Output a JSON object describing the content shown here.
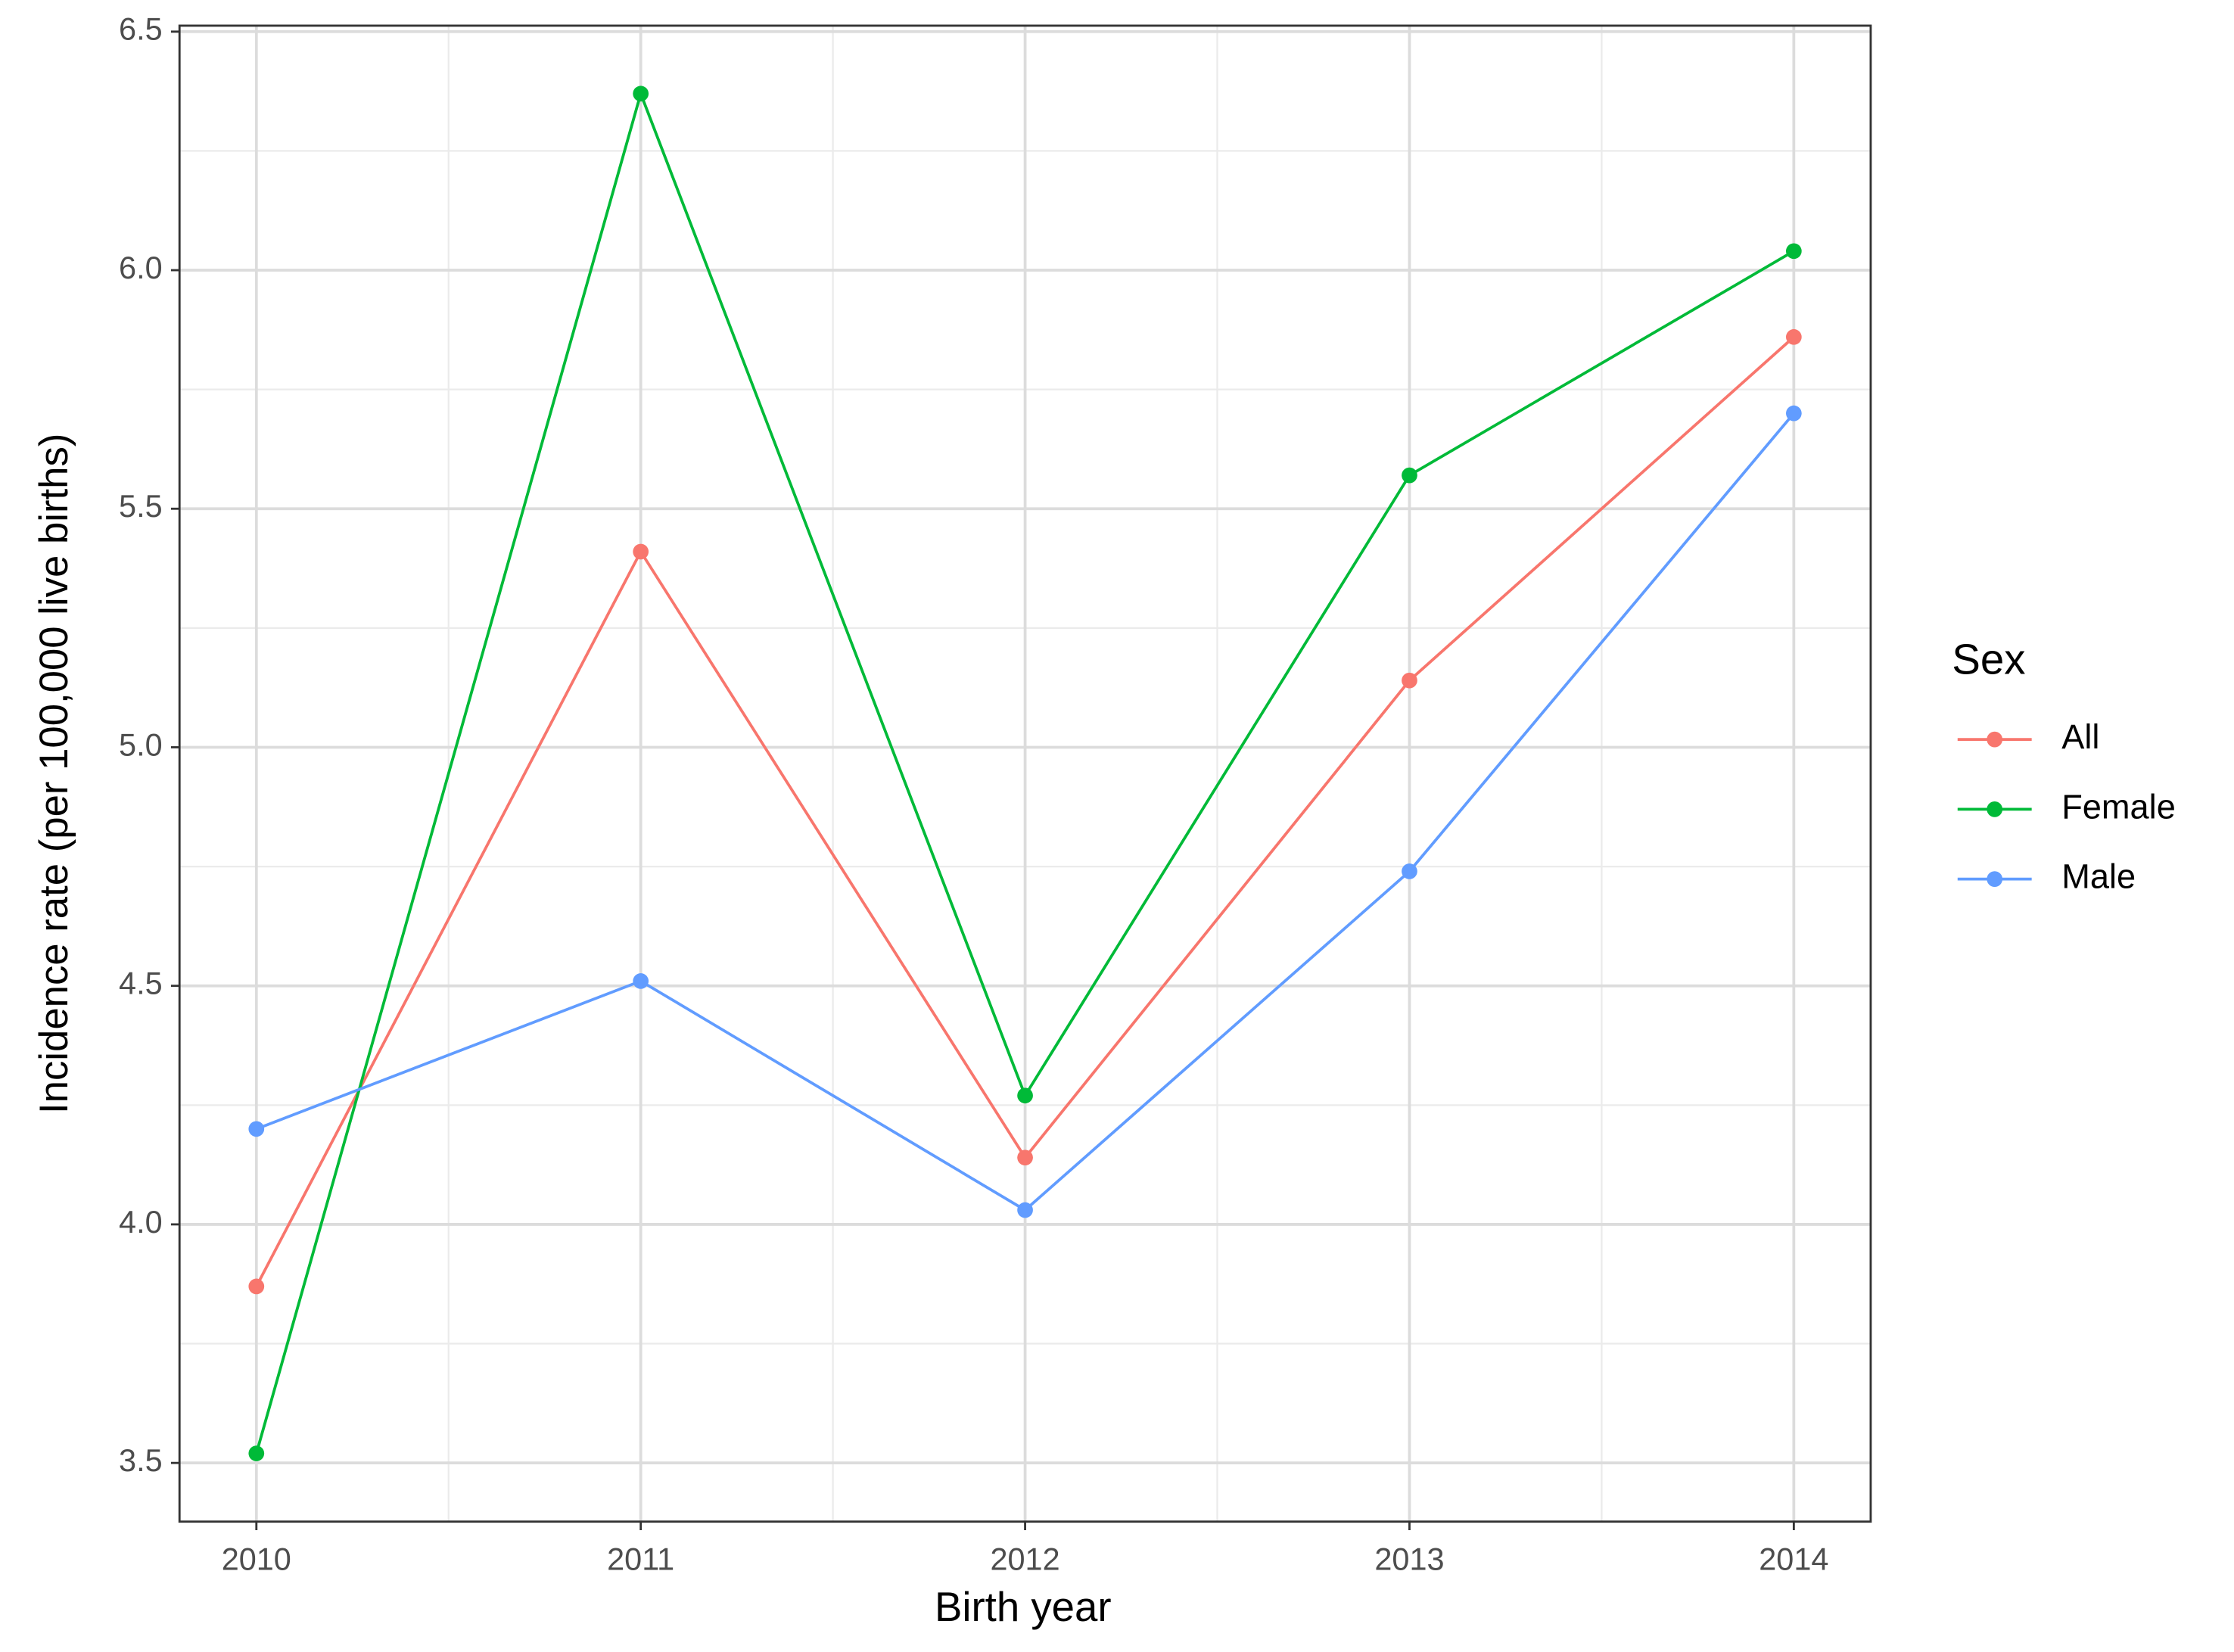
{
  "chart_data": {
    "type": "line",
    "x_label": "Birth year",
    "y_label": "Incidence rate (per 100,000 live births)",
    "legend_title": "Sex",
    "legend_position": "right",
    "x": [
      2010,
      2011,
      2012,
      2013,
      2014
    ],
    "series": [
      {
        "name": "All",
        "color": "#F8766D",
        "values": [
          3.87,
          5.41,
          4.14,
          5.14,
          5.86
        ]
      },
      {
        "name": "Female",
        "color": "#00BA38",
        "values": [
          3.52,
          6.37,
          4.27,
          5.57,
          6.04
        ]
      },
      {
        "name": "Male",
        "color": "#619CFF",
        "values": [
          4.2,
          4.51,
          4.03,
          4.74,
          5.7
        ]
      }
    ],
    "xlim": [
      2009.8,
      2014.2
    ],
    "xticks": [
      2010,
      2011,
      2012,
      2013,
      2014
    ],
    "ylim": [
      3.377,
      6.5125
    ],
    "yticks": [
      3.5,
      {
        "value": 4.0,
        "label": "4.0"
      },
      4.5,
      {
        "value": 5.0,
        "label": "5.0"
      },
      5.5,
      {
        "value": 6.0,
        "label": "6.0"
      },
      6.5
    ],
    "grid": true
  }
}
